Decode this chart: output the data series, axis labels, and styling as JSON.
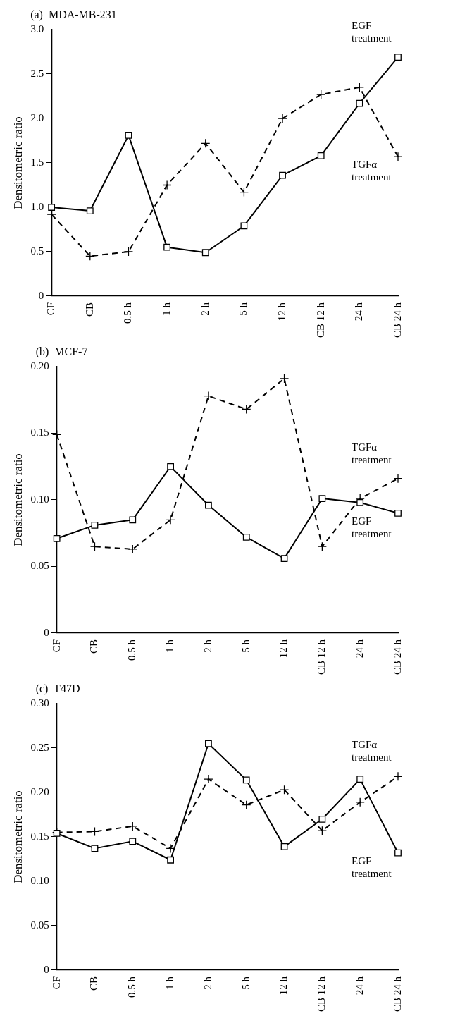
{
  "chart_data": [
    {
      "type": "line",
      "title": "(a)  MDA-MB-231",
      "ylabel": "Densitometric ratio",
      "categories": [
        "CF",
        "CB",
        "0.5 h",
        "1 h",
        "2 h",
        "5 h",
        "12 h",
        "CB 12 h",
        "24 h",
        "CB 24 h"
      ],
      "series": [
        {
          "name": "EGF treatment",
          "color": "#000000",
          "marker": "square",
          "line_style": "solid",
          "values": [
            1.0,
            0.96,
            1.81,
            0.55,
            0.49,
            0.79,
            1.36,
            1.58,
            2.17,
            2.69
          ]
        },
        {
          "name": "TGFα treatment",
          "color": "#000000",
          "marker": "cross",
          "line_style": "dashed",
          "values": [
            0.92,
            0.45,
            0.5,
            1.25,
            1.72,
            1.17,
            2.0,
            2.27,
            2.35,
            1.57
          ]
        }
      ],
      "ylim": [
        0,
        3
      ],
      "yticks": [
        0,
        0.5,
        {
          "value": 1,
          "label": "1.0"
        },
        1.5,
        {
          "value": 2,
          "label": "2.0"
        },
        2.5,
        {
          "value": 3,
          "label": "3.0"
        }
      ],
      "grid": false,
      "legend": false
    },
    {
      "type": "line",
      "title": "(b)  MCF-7",
      "ylabel": "Densitometric ratio",
      "categories": [
        "CF",
        "CB",
        "0.5 h",
        "1 h",
        "2 h",
        "5 h",
        "12 h",
        "CB 12 h",
        "24 h",
        "CB 24 h"
      ],
      "series": [
        {
          "name": "EGF treatment",
          "color": "#000000",
          "marker": "square",
          "line_style": "solid",
          "values": [
            0.071,
            0.081,
            0.085,
            0.125,
            0.096,
            0.072,
            0.056,
            0.101,
            0.098,
            0.09
          ]
        },
        {
          "name": "TGFα treatment",
          "color": "#000000",
          "marker": "cross",
          "line_style": "dashed",
          "values": [
            0.149,
            0.065,
            0.063,
            0.085,
            0.178,
            0.168,
            0.191,
            0.065,
            0.101,
            0.116
          ]
        }
      ],
      "ylim": [
        0,
        0.2
      ],
      "yticks": [
        0,
        0.05,
        {
          "value": 0.1,
          "label": "0.10"
        },
        0.15,
        {
          "value": 0.2,
          "label": "0.20"
        }
      ],
      "grid": false,
      "legend": false
    },
    {
      "type": "line",
      "title": "(c)  T47D",
      "ylabel": "Densitometric ratio",
      "categories": [
        "CF",
        "CB",
        "0.5 h",
        "1 h",
        "2 h",
        "5 h",
        "12 h",
        "CB 12 h",
        "24 h",
        "CB 24 h"
      ],
      "series": [
        {
          "name": "EGF treatment",
          "color": "#000000",
          "marker": "square",
          "line_style": "solid",
          "values": [
            0.154,
            0.137,
            0.145,
            0.124,
            0.255,
            0.214,
            0.139,
            0.17,
            0.215,
            0.132
          ]
        },
        {
          "name": "TGFα treatment",
          "color": "#000000",
          "marker": "cross",
          "line_style": "dashed",
          "values": [
            0.155,
            0.156,
            0.162,
            0.137,
            0.215,
            0.186,
            0.203,
            0.157,
            0.189,
            0.218
          ]
        }
      ],
      "ylim": [
        0,
        0.3
      ],
      "yticks": [
        0,
        0.05,
        {
          "value": 0.1,
          "label": "0.10"
        },
        0.15,
        {
          "value": 0.2,
          "label": "0.20"
        },
        0.25,
        {
          "value": 0.3,
          "label": "0.30"
        }
      ],
      "grid": false,
      "legend": false
    }
  ]
}
